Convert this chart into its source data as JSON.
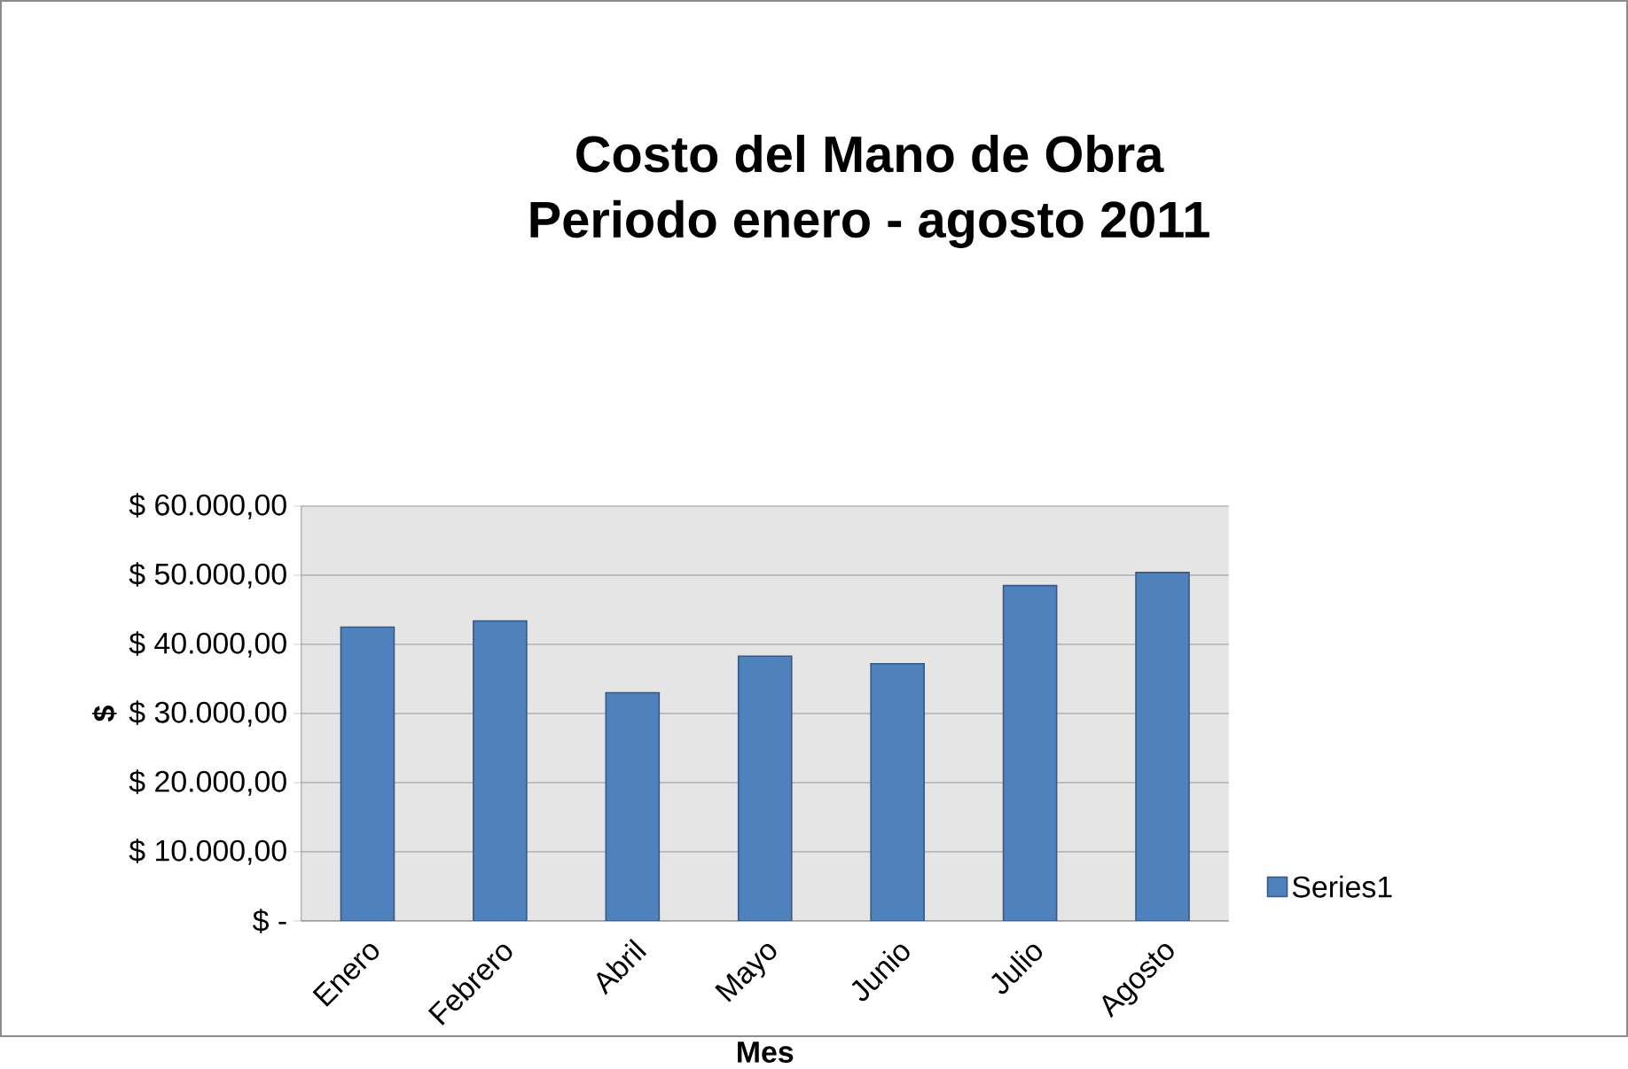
{
  "chart_data": {
    "type": "bar",
    "title": "Costo del Mano de Obra\nPeriodo enero - agosto 2011",
    "xlabel": "Mes",
    "ylabel": "$",
    "categories": [
      "Enero",
      "Febrero",
      "Abril",
      "Mayo",
      "Junio",
      "Julio",
      "Agosto"
    ],
    "series": [
      {
        "name": "Series1",
        "color": "#4f81bd",
        "values": [
          42500,
          43400,
          33000,
          38300,
          37200,
          48500,
          50400
        ]
      }
    ],
    "ylim": [
      0,
      60000
    ],
    "yticks": [
      {
        "value": 0,
        "label": "$ -"
      },
      {
        "value": 10000,
        "label": "$ 10.000,00"
      },
      {
        "value": 20000,
        "label": "$ 20.000,00"
      },
      {
        "value": 30000,
        "label": "$ 30.000,00"
      },
      {
        "value": 40000,
        "label": "$ 40.000,00"
      },
      {
        "value": 50000,
        "label": "$ 50.000,00"
      },
      {
        "value": 60000,
        "label": "$ 60.000,00"
      }
    ],
    "grid": "y",
    "legend": "right"
  }
}
